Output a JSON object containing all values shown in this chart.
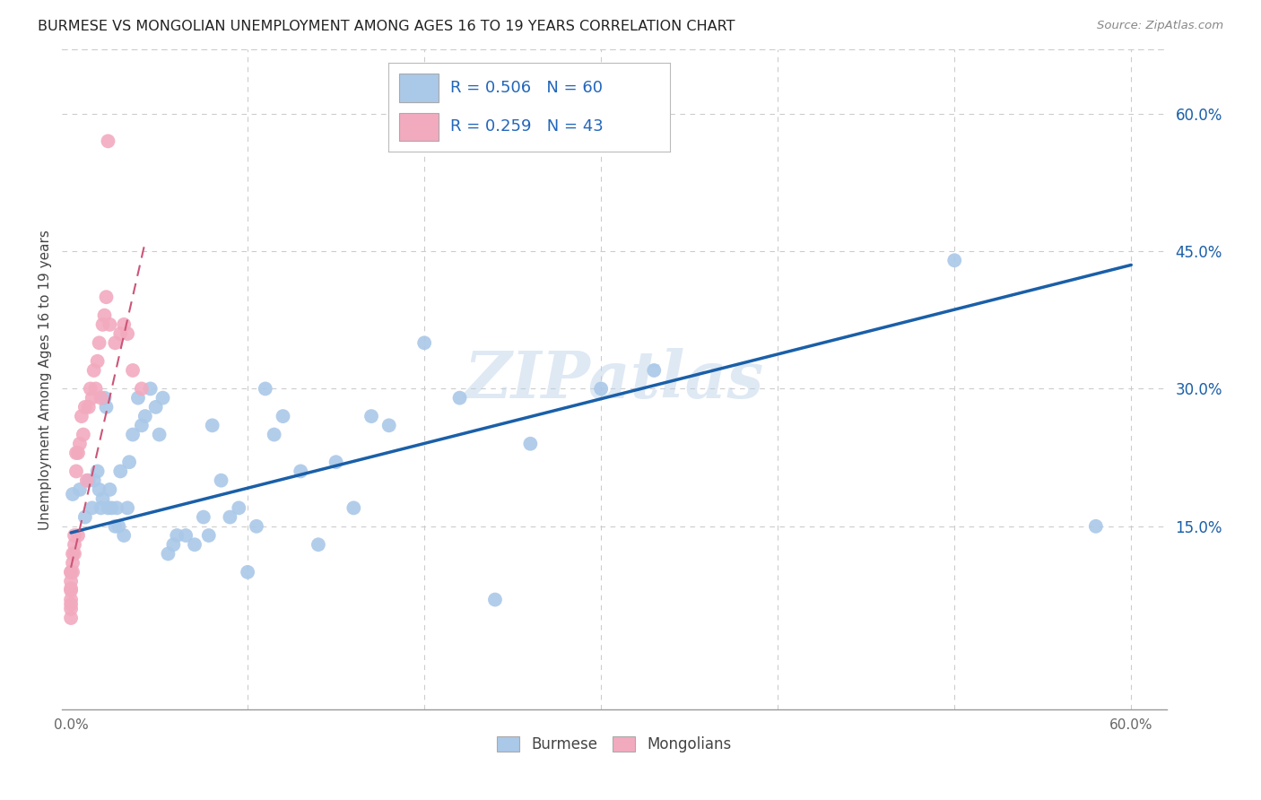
{
  "title": "BURMESE VS MONGOLIAN UNEMPLOYMENT AMONG AGES 16 TO 19 YEARS CORRELATION CHART",
  "source": "Source: ZipAtlas.com",
  "ylabel": "Unemployment Among Ages 16 to 19 years",
  "xlim": [
    -0.005,
    0.62
  ],
  "ylim": [
    -0.05,
    0.67
  ],
  "grid_color": "#cccccc",
  "background_color": "#ffffff",
  "burmese_color": "#aac8e8",
  "mongolian_color": "#f2aabf",
  "burmese_line_color": "#1a5fa8",
  "mongolian_line_color": "#cc5577",
  "legend_burmese_R": "0.506",
  "legend_burmese_N": "60",
  "legend_mongolian_R": "0.259",
  "legend_mongolian_N": "43",
  "burmese_x": [
    0.001,
    0.005,
    0.008,
    0.01,
    0.012,
    0.013,
    0.015,
    0.016,
    0.017,
    0.018,
    0.019,
    0.02,
    0.021,
    0.022,
    0.023,
    0.025,
    0.026,
    0.027,
    0.028,
    0.03,
    0.032,
    0.033,
    0.035,
    0.038,
    0.04,
    0.042,
    0.045,
    0.048,
    0.05,
    0.052,
    0.055,
    0.058,
    0.06,
    0.065,
    0.07,
    0.075,
    0.078,
    0.08,
    0.085,
    0.09,
    0.095,
    0.1,
    0.105,
    0.11,
    0.115,
    0.12,
    0.13,
    0.14,
    0.15,
    0.16,
    0.17,
    0.18,
    0.2,
    0.22,
    0.24,
    0.26,
    0.3,
    0.33,
    0.5,
    0.58
  ],
  "burmese_y": [
    0.185,
    0.19,
    0.16,
    0.2,
    0.17,
    0.2,
    0.21,
    0.19,
    0.17,
    0.18,
    0.29,
    0.28,
    0.17,
    0.19,
    0.17,
    0.15,
    0.17,
    0.15,
    0.21,
    0.14,
    0.17,
    0.22,
    0.25,
    0.29,
    0.26,
    0.27,
    0.3,
    0.28,
    0.25,
    0.29,
    0.12,
    0.13,
    0.14,
    0.14,
    0.13,
    0.16,
    0.14,
    0.26,
    0.2,
    0.16,
    0.17,
    0.1,
    0.15,
    0.3,
    0.25,
    0.27,
    0.21,
    0.13,
    0.22,
    0.17,
    0.27,
    0.26,
    0.35,
    0.29,
    0.07,
    0.24,
    0.3,
    0.32,
    0.44,
    0.15
  ],
  "mongolian_x": [
    0.0,
    0.0,
    0.0,
    0.0,
    0.0,
    0.0,
    0.0,
    0.0,
    0.0,
    0.001,
    0.001,
    0.001,
    0.002,
    0.002,
    0.002,
    0.003,
    0.003,
    0.004,
    0.004,
    0.005,
    0.006,
    0.007,
    0.008,
    0.009,
    0.01,
    0.011,
    0.012,
    0.013,
    0.014,
    0.015,
    0.016,
    0.017,
    0.018,
    0.019,
    0.02,
    0.021,
    0.022,
    0.025,
    0.028,
    0.03,
    0.032,
    0.035,
    0.04
  ],
  "mongolian_y": [
    0.05,
    0.06,
    0.065,
    0.07,
    0.08,
    0.082,
    0.09,
    0.1,
    0.1,
    0.1,
    0.11,
    0.12,
    0.14,
    0.12,
    0.13,
    0.21,
    0.23,
    0.14,
    0.23,
    0.24,
    0.27,
    0.25,
    0.28,
    0.2,
    0.28,
    0.3,
    0.29,
    0.32,
    0.3,
    0.33,
    0.35,
    0.29,
    0.37,
    0.38,
    0.4,
    0.57,
    0.37,
    0.35,
    0.36,
    0.37,
    0.36,
    0.32,
    0.3
  ],
  "burmese_line_x": [
    0.0,
    0.6
  ],
  "burmese_line_y": [
    0.143,
    0.435
  ],
  "mongolian_line_x": [
    0.0,
    0.042
  ],
  "mongolian_line_y": [
    0.105,
    0.46
  ]
}
